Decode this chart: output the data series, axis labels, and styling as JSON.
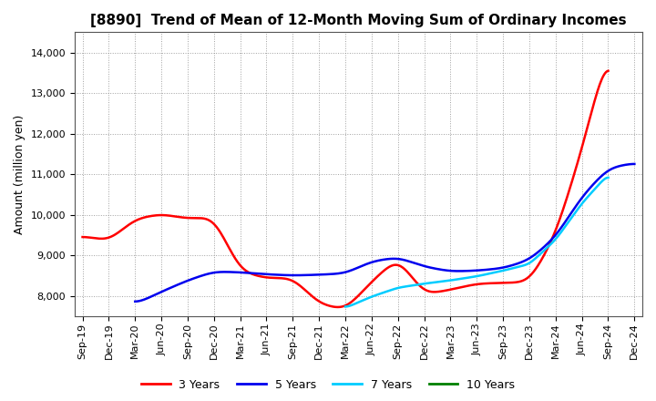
{
  "title": "[8890]  Trend of Mean of 12-Month Moving Sum of Ordinary Incomes",
  "ylabel": "Amount (million yen)",
  "background_color": "#ffffff",
  "grid_color": "#888888",
  "ylim": [
    7500,
    14500
  ],
  "yticks": [
    8000,
    9000,
    10000,
    11000,
    12000,
    13000,
    14000
  ],
  "x_labels": [
    "Sep-19",
    "Dec-19",
    "Mar-20",
    "Jun-20",
    "Sep-20",
    "Dec-20",
    "Mar-21",
    "Jun-21",
    "Sep-21",
    "Dec-21",
    "Mar-22",
    "Jun-22",
    "Sep-22",
    "Dec-22",
    "Mar-23",
    "Jun-23",
    "Sep-23",
    "Dec-23",
    "Mar-24",
    "Jun-24",
    "Sep-24",
    "Dec-24"
  ],
  "series": {
    "3 Years": {
      "color": "#ff0000",
      "data": [
        9480,
        9350,
        9900,
        10020,
        9900,
        9950,
        8600,
        8430,
        8450,
        7800,
        7650,
        8350,
        8950,
        8030,
        8150,
        8300,
        8320,
        8330,
        9500,
        11600,
        14150,
        null
      ]
    },
    "5 Years": {
      "color": "#0000ee",
      "data": [
        null,
        null,
        7790,
        8100,
        8380,
        8600,
        8580,
        8530,
        8500,
        8520,
        8550,
        8850,
        8950,
        8720,
        8600,
        8620,
        8680,
        8880,
        9450,
        10450,
        11150,
        11280
      ]
    },
    "7 Years": {
      "color": "#00ccff",
      "data": [
        null,
        null,
        null,
        null,
        null,
        null,
        null,
        null,
        null,
        null,
        7700,
        7980,
        8200,
        8300,
        8380,
        8480,
        8620,
        8780,
        9380,
        10280,
        11000,
        null
      ]
    },
    "10 Years": {
      "color": "#008000",
      "data": [
        null,
        null,
        null,
        null,
        null,
        null,
        null,
        null,
        null,
        null,
        null,
        null,
        null,
        null,
        null,
        null,
        null,
        null,
        null,
        null,
        null,
        null
      ]
    }
  },
  "legend_labels": [
    "3 Years",
    "5 Years",
    "7 Years",
    "10 Years"
  ],
  "legend_colors": [
    "#ff0000",
    "#0000ee",
    "#00ccff",
    "#008000"
  ],
  "title_fontsize": 11,
  "label_fontsize": 9,
  "tick_fontsize": 8
}
